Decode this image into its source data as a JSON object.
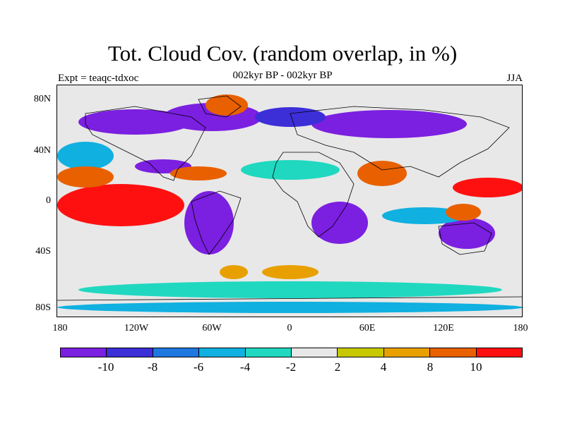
{
  "header": {
    "title": "Tot. Cloud Cov. (random overlap, in %)",
    "subtitle": "002kyr BP - 002kyr BP",
    "left_label": "Expt = teaqc-tdxoc",
    "right_label": "JJA"
  },
  "map": {
    "projection": "cylindrical equidistant",
    "lat_labels": [
      "80N",
      "40N",
      "0",
      "40S",
      "80S"
    ],
    "lon_labels": [
      "180",
      "120W",
      "60W",
      "0",
      "60E",
      "120E",
      "180"
    ],
    "background_color": "#e8e8e8",
    "coastline_color": "#000000"
  },
  "colorbar": {
    "colors": [
      "#7b1fe0",
      "#3c2fd8",
      "#1e78e0",
      "#10b0e0",
      "#20d8c0",
      "#e8e8e8",
      "#c8c800",
      "#e8a000",
      "#e86000",
      "#ff1010"
    ],
    "labels": [
      "-10",
      "-8",
      "-6",
      "-4",
      "-2",
      "2",
      "4",
      "8",
      "10"
    ]
  }
}
